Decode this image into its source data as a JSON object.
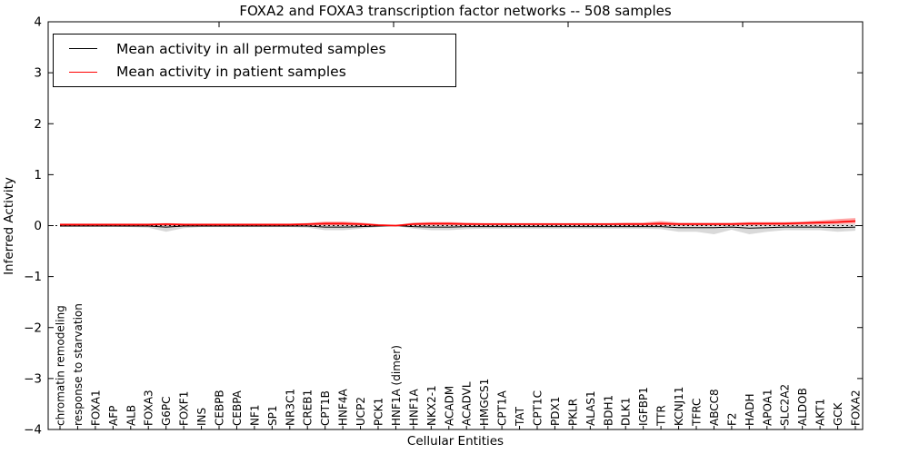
{
  "chart_data": {
    "type": "line",
    "title": "FOXA2 and FOXA3 transcription factor networks -- 508 samples",
    "xlabel": "Cellular Entities",
    "ylabel": "Inferred Activity",
    "ylim": [
      -4,
      4
    ],
    "yticks": [
      4,
      3,
      2,
      1,
      0,
      -1,
      -2,
      -3,
      -4
    ],
    "grid": false,
    "legend_position": "upper left",
    "zero_line": {
      "style": "dashed",
      "color": "#000000",
      "y": 0
    },
    "categories": [
      "chromatin remodeling",
      "response to starvation",
      "FOXA1",
      "AFP",
      "ALB",
      "FOXA3",
      "G6PC",
      "FOXF1",
      "INS",
      "CEBPB",
      "CEBPA",
      "NF1",
      "SP1",
      "NR3C1",
      "CREB1",
      "CPT1B",
      "HNF4A",
      "UCP2",
      "PCK1",
      "HNF1A (dimer)",
      "HNF1A",
      "NKX2-1",
      "ACADM",
      "ACADVL",
      "HMGCS1",
      "CPT1A",
      "TAT",
      "CPT1C",
      "PDX1",
      "PKLR",
      "ALAS1",
      "BDH1",
      "DLK1",
      "IGFBP1",
      "TTR",
      "KCNJ11",
      "TFRC",
      "ABCC8",
      "F2",
      "HADH",
      "APOA1",
      "SLC2A2",
      "ALDOB",
      "AKT1",
      "GCK",
      "FOXA2"
    ],
    "series": [
      {
        "name": "Mean activity in all permuted samples",
        "color": "#000000",
        "line_width": 1,
        "band_color": "rgba(0,0,0,0.15)",
        "values": [
          -0.01,
          -0.01,
          -0.01,
          -0.01,
          -0.01,
          -0.01,
          -0.03,
          -0.01,
          -0.01,
          -0.01,
          -0.01,
          -0.01,
          -0.01,
          -0.01,
          -0.01,
          -0.03,
          -0.03,
          -0.02,
          -0.01,
          0.0,
          -0.02,
          -0.03,
          -0.03,
          -0.02,
          -0.02,
          -0.02,
          -0.02,
          -0.02,
          -0.02,
          -0.02,
          -0.02,
          -0.02,
          -0.02,
          -0.02,
          -0.02,
          -0.04,
          -0.04,
          -0.04,
          -0.03,
          -0.05,
          -0.04,
          -0.03,
          -0.03,
          -0.03,
          -0.04,
          -0.03
        ],
        "band_low": [
          -0.02,
          -0.02,
          -0.02,
          -0.02,
          -0.03,
          -0.04,
          -0.12,
          -0.05,
          -0.03,
          -0.03,
          -0.03,
          -0.03,
          -0.03,
          -0.03,
          -0.04,
          -0.09,
          -0.09,
          -0.06,
          -0.03,
          -0.01,
          -0.06,
          -0.09,
          -0.09,
          -0.07,
          -0.06,
          -0.06,
          -0.06,
          -0.06,
          -0.06,
          -0.06,
          -0.06,
          -0.06,
          -0.06,
          -0.06,
          -0.07,
          -0.12,
          -0.12,
          -0.17,
          -0.08,
          -0.17,
          -0.12,
          -0.09,
          -0.09,
          -0.09,
          -0.12,
          -0.1
        ],
        "band_high": [
          0.01,
          0.01,
          0.01,
          0.01,
          0.01,
          0.02,
          0.04,
          0.02,
          0.01,
          0.01,
          0.01,
          0.01,
          0.01,
          0.01,
          0.02,
          0.03,
          0.03,
          0.02,
          0.01,
          0.01,
          0.02,
          0.03,
          0.03,
          0.02,
          0.02,
          0.02,
          0.02,
          0.02,
          0.02,
          0.02,
          0.02,
          0.02,
          0.02,
          0.02,
          0.03,
          0.03,
          0.03,
          0.02,
          0.02,
          0.03,
          0.02,
          0.02,
          0.02,
          0.02,
          0.03,
          0.03
        ]
      },
      {
        "name": "Mean activity in patient samples",
        "color": "#ff0000",
        "line_width": 1.7,
        "band_color": "rgba(255,0,0,0.35)",
        "values": [
          0.02,
          0.02,
          0.02,
          0.02,
          0.02,
          0.02,
          0.03,
          0.02,
          0.02,
          0.02,
          0.02,
          0.02,
          0.02,
          0.02,
          0.03,
          0.04,
          0.04,
          0.03,
          0.01,
          0.0,
          0.03,
          0.04,
          0.04,
          0.03,
          0.03,
          0.03,
          0.03,
          0.03,
          0.03,
          0.03,
          0.03,
          0.03,
          0.03,
          0.03,
          0.04,
          0.03,
          0.03,
          0.03,
          0.03,
          0.04,
          0.04,
          0.04,
          0.05,
          0.06,
          0.07,
          0.09
        ],
        "band_low": [
          0.0,
          0.0,
          0.0,
          0.0,
          0.0,
          0.0,
          0.0,
          0.0,
          0.0,
          0.0,
          0.0,
          0.0,
          0.0,
          0.0,
          0.0,
          0.01,
          0.01,
          0.0,
          0.0,
          0.0,
          0.01,
          0.01,
          0.01,
          0.01,
          0.01,
          0.01,
          0.01,
          0.01,
          0.01,
          0.01,
          0.01,
          0.01,
          0.01,
          0.01,
          0.01,
          0.01,
          0.01,
          0.01,
          0.01,
          0.01,
          0.01,
          0.01,
          0.02,
          0.02,
          0.03,
          0.04
        ],
        "band_high": [
          0.04,
          0.04,
          0.04,
          0.04,
          0.04,
          0.04,
          0.05,
          0.04,
          0.04,
          0.04,
          0.04,
          0.04,
          0.04,
          0.04,
          0.05,
          0.08,
          0.08,
          0.06,
          0.03,
          0.01,
          0.06,
          0.07,
          0.07,
          0.06,
          0.05,
          0.05,
          0.05,
          0.05,
          0.05,
          0.05,
          0.05,
          0.05,
          0.06,
          0.06,
          0.09,
          0.06,
          0.06,
          0.06,
          0.06,
          0.07,
          0.07,
          0.07,
          0.08,
          0.1,
          0.13,
          0.15
        ]
      }
    ]
  }
}
